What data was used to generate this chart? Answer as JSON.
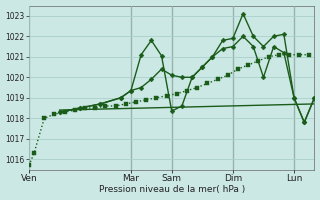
{
  "bg_color": "#cce8e4",
  "grid_color": "#aacfcb",
  "line_color": "#1a5c1a",
  "title": "Pression niveau de la mer( hPa )",
  "ylabel_ticks": [
    1016,
    1017,
    1018,
    1019,
    1020,
    1021,
    1022,
    1023
  ],
  "day_labels": [
    "Ven",
    "Mar",
    "Sam",
    "Dim",
    "Lun"
  ],
  "day_x": [
    0,
    10,
    14,
    20,
    26
  ],
  "vline_x": [
    0,
    10,
    14,
    20,
    26
  ],
  "xlim": [
    0,
    28
  ],
  "ylim": [
    1015.5,
    1023.5
  ],
  "series_dotted": {
    "x": [
      0,
      0.5,
      1.5,
      2.5,
      3.5,
      4.5,
      5.5,
      6.5,
      7.5,
      8.5,
      9.5,
      10.5,
      11.5,
      12.5,
      13.5,
      14.5,
      15.5,
      16.5,
      17.5,
      18.5,
      19.5,
      20.5,
      21.5,
      22.5,
      23.5,
      24.5,
      25.5,
      26.5,
      27.5
    ],
    "y": [
      1015.7,
      1016.3,
      1018.0,
      1018.2,
      1018.3,
      1018.4,
      1018.5,
      1018.5,
      1018.6,
      1018.6,
      1018.7,
      1018.8,
      1018.9,
      1019.0,
      1019.1,
      1019.2,
      1019.35,
      1019.5,
      1019.7,
      1019.9,
      1020.1,
      1020.4,
      1020.6,
      1020.8,
      1021.0,
      1021.1,
      1021.1,
      1021.1,
      1021.1
    ],
    "linewidth": 1.0,
    "markersize": 2.5
  },
  "series_flat": {
    "x": [
      3,
      28
    ],
    "y": [
      1018.4,
      1018.7
    ],
    "linewidth": 1.0
  },
  "series_upper": {
    "x": [
      3,
      5,
      7,
      9,
      10,
      11,
      12,
      13,
      14,
      15,
      16,
      17,
      18,
      19,
      20,
      21,
      22,
      23,
      24,
      25,
      26,
      27,
      28
    ],
    "y": [
      1018.3,
      1018.5,
      1018.7,
      1019.0,
      1019.35,
      1021.1,
      1021.8,
      1021.05,
      1018.35,
      1018.6,
      1020.0,
      1020.5,
      1021.0,
      1021.8,
      1021.9,
      1023.1,
      1022.0,
      1021.5,
      1022.0,
      1022.1,
      1019.0,
      1017.8,
      1019.0
    ],
    "linewidth": 1.0,
    "markersize": 2.5
  },
  "series_mid": {
    "x": [
      3,
      5,
      7,
      9,
      10,
      11,
      12,
      13,
      14,
      15,
      16,
      17,
      18,
      19,
      20,
      21,
      22,
      23,
      24,
      25,
      26,
      27,
      28
    ],
    "y": [
      1018.3,
      1018.5,
      1018.7,
      1019.0,
      1019.35,
      1019.5,
      1019.9,
      1020.4,
      1020.1,
      1020.0,
      1020.0,
      1020.5,
      1021.0,
      1021.4,
      1021.5,
      1022.0,
      1021.5,
      1020.0,
      1021.5,
      1021.2,
      1019.0,
      1017.8,
      1019.0
    ],
    "linewidth": 1.0,
    "markersize": 2.5
  }
}
